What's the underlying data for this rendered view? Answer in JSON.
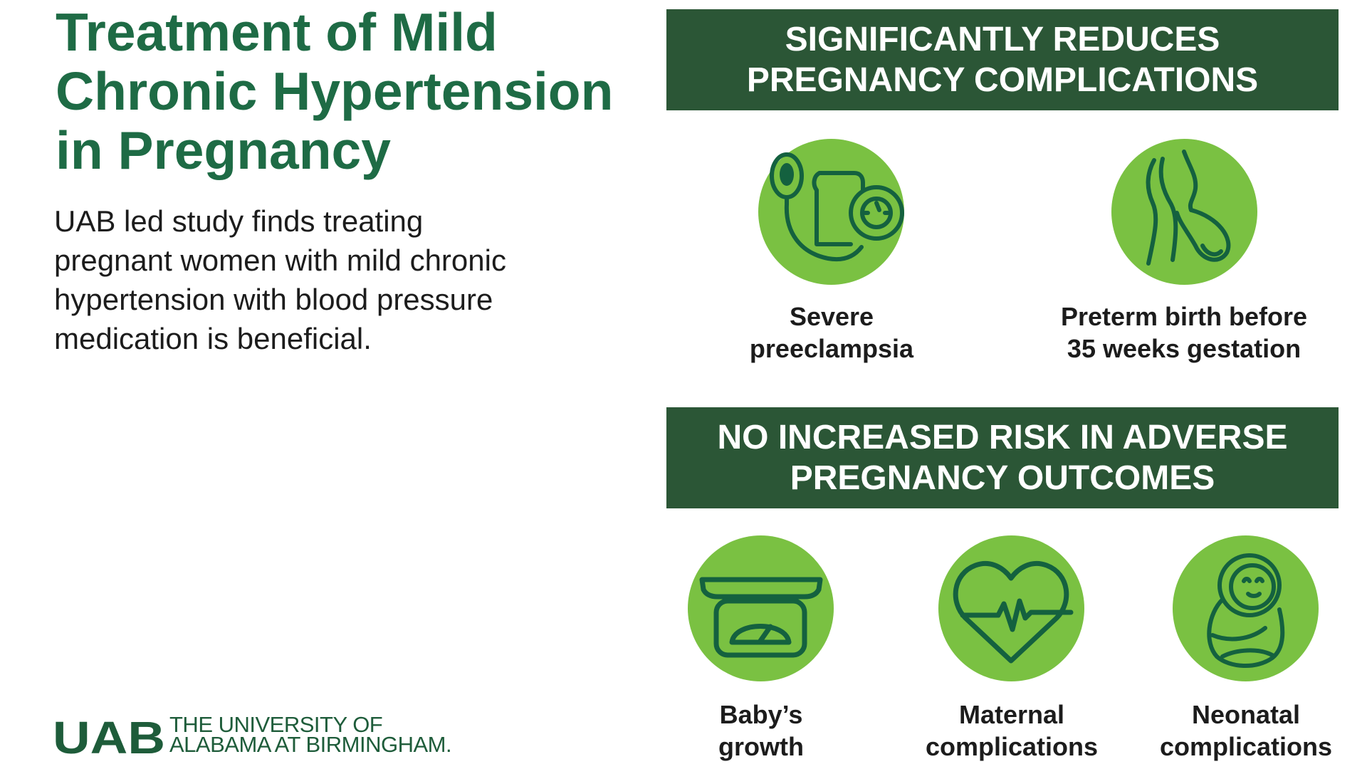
{
  "header": {
    "title_lines": [
      "Treatment of Mild",
      "Chronic Hypertension",
      "in Pregnancy"
    ],
    "intro_lines": [
      "UAB led study finds treating",
      "pregnant women with mild chronic",
      "hypertension with blood pressure",
      "medication is beneficial."
    ]
  },
  "logo": {
    "mark": "UAB",
    "text_lines": [
      "THE UNIVERSITY OF",
      "ALABAMA AT BIRMINGHAM."
    ]
  },
  "section_reduces": {
    "heading_lines": [
      "SIGNIFICANTLY REDUCES",
      "PREGNANCY COMPLICATIONS"
    ],
    "items": [
      {
        "icon": "blood-pressure-cuff-icon",
        "label_lines": [
          "Severe",
          "preeclampsia"
        ]
      },
      {
        "icon": "pregnant-woman-icon",
        "label_lines": [
          "Preterm birth before",
          "35 weeks gestation"
        ]
      }
    ]
  },
  "section_no_risk": {
    "heading_lines": [
      "NO INCREASED RISK IN ADVERSE",
      "PREGNANCY OUTCOMES"
    ],
    "items": [
      {
        "icon": "baby-scale-icon",
        "label_lines": [
          "Baby’s",
          "growth"
        ]
      },
      {
        "icon": "heart-rate-icon",
        "label_lines": [
          "Maternal",
          "complications"
        ]
      },
      {
        "icon": "swaddled-baby-icon",
        "label_lines": [
          "Neonatal",
          "complications"
        ]
      }
    ]
  },
  "colors": {
    "title_green": "#1e6b45",
    "banner_green": "#2b5636",
    "icon_circle": "#7ac142",
    "icon_stroke": "#14613f"
  }
}
